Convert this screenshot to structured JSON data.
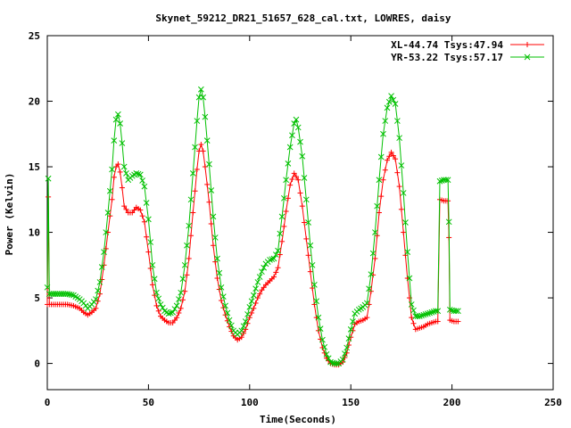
{
  "chart_data": {
    "type": "line",
    "title": "Skynet_59212_DR21_51657_628_cal.txt, LOWRES, daisy",
    "xlabel": "Time(Seconds)",
    "ylabel": "Power (Kelvin)",
    "xlim": [
      0,
      250
    ],
    "ylim": [
      -2,
      25
    ],
    "xticks": [
      0,
      50,
      100,
      150,
      200,
      250
    ],
    "yticks": [
      0,
      5,
      10,
      15,
      20,
      25
    ],
    "grid": false,
    "legend_position": "top-right",
    "series": [
      {
        "name": "XL-44.74 Tsys:47.94",
        "color": "#ff0000",
        "marker": "plus",
        "points": [
          [
            0,
            4.5
          ],
          [
            0.5,
            12.7
          ],
          [
            1,
            4.5
          ],
          [
            5,
            4.5
          ],
          [
            10,
            4.5
          ],
          [
            13,
            4.4
          ],
          [
            16,
            4.2
          ],
          [
            18,
            3.9
          ],
          [
            20,
            3.7
          ],
          [
            22,
            3.9
          ],
          [
            24,
            4.2
          ],
          [
            26,
            5.3
          ],
          [
            28,
            7.5
          ],
          [
            30,
            10.0
          ],
          [
            32,
            12.5
          ],
          [
            33,
            14.2
          ],
          [
            34,
            15.0
          ],
          [
            35,
            15.2
          ],
          [
            36,
            14.6
          ],
          [
            37,
            13.4
          ],
          [
            38,
            12.0
          ],
          [
            40,
            11.5
          ],
          [
            42,
            11.5
          ],
          [
            44,
            11.9
          ],
          [
            46,
            11.7
          ],
          [
            48,
            10.8
          ],
          [
            50,
            8.5
          ],
          [
            52,
            6.0
          ],
          [
            54,
            4.4
          ],
          [
            56,
            3.6
          ],
          [
            58,
            3.3
          ],
          [
            60,
            3.1
          ],
          [
            62,
            3.1
          ],
          [
            64,
            3.5
          ],
          [
            66,
            4.2
          ],
          [
            68,
            5.5
          ],
          [
            70,
            8.0
          ],
          [
            72,
            11.5
          ],
          [
            74,
            14.8
          ],
          [
            75,
            16.2
          ],
          [
            76,
            16.7
          ],
          [
            77,
            16.2
          ],
          [
            78,
            15.0
          ],
          [
            80,
            12.3
          ],
          [
            82,
            9.0
          ],
          [
            84,
            6.5
          ],
          [
            86,
            4.8
          ],
          [
            88,
            3.7
          ],
          [
            90,
            2.8
          ],
          [
            92,
            2.1
          ],
          [
            94,
            1.8
          ],
          [
            96,
            2.0
          ],
          [
            98,
            2.6
          ],
          [
            100,
            3.5
          ],
          [
            102,
            4.2
          ],
          [
            104,
            5.0
          ],
          [
            106,
            5.6
          ],
          [
            108,
            6.0
          ],
          [
            110,
            6.3
          ],
          [
            112,
            6.6
          ],
          [
            114,
            7.3
          ],
          [
            116,
            9.3
          ],
          [
            118,
            11.6
          ],
          [
            120,
            13.6
          ],
          [
            122,
            14.5
          ],
          [
            124,
            14.0
          ],
          [
            126,
            12.0
          ],
          [
            128,
            9.5
          ],
          [
            130,
            7.0
          ],
          [
            132,
            4.5
          ],
          [
            134,
            2.5
          ],
          [
            136,
            1.2
          ],
          [
            138,
            0.4
          ],
          [
            140,
            0.0
          ],
          [
            142,
            -0.1
          ],
          [
            144,
            -0.1
          ],
          [
            146,
            0.1
          ],
          [
            148,
            0.8
          ],
          [
            150,
            2.0
          ],
          [
            152,
            3.0
          ],
          [
            154,
            3.2
          ],
          [
            156,
            3.3
          ],
          [
            158,
            3.5
          ],
          [
            160,
            5.5
          ],
          [
            162,
            8.0
          ],
          [
            164,
            11.5
          ],
          [
            166,
            14.0
          ],
          [
            168,
            15.5
          ],
          [
            170,
            16.1
          ],
          [
            172,
            15.6
          ],
          [
            174,
            13.5
          ],
          [
            176,
            10.0
          ],
          [
            178,
            6.5
          ],
          [
            180,
            3.5
          ],
          [
            182,
            2.6
          ],
          [
            184,
            2.7
          ],
          [
            186,
            2.8
          ],
          [
            188,
            3.0
          ],
          [
            190,
            3.1
          ],
          [
            192,
            3.2
          ],
          [
            193,
            3.2
          ],
          [
            194,
            12.5
          ],
          [
            196,
            12.4
          ],
          [
            198,
            12.4
          ],
          [
            198.5,
            9.6
          ],
          [
            199,
            3.3
          ],
          [
            201,
            3.2
          ],
          [
            203,
            3.2
          ]
        ]
      },
      {
        "name": "YR-53.22 Tsys:57.17",
        "color": "#00c000",
        "marker": "cross",
        "points": [
          [
            0,
            5.8
          ],
          [
            0.5,
            14.1
          ],
          [
            1,
            5.3
          ],
          [
            5,
            5.3
          ],
          [
            10,
            5.3
          ],
          [
            13,
            5.2
          ],
          [
            16,
            4.9
          ],
          [
            18,
            4.6
          ],
          [
            20,
            4.2
          ],
          [
            22,
            4.5
          ],
          [
            24,
            4.9
          ],
          [
            26,
            6.2
          ],
          [
            28,
            8.5
          ],
          [
            30,
            11.5
          ],
          [
            32,
            14.8
          ],
          [
            33,
            17.0
          ],
          [
            34,
            18.6
          ],
          [
            35,
            19.0
          ],
          [
            36,
            18.3
          ],
          [
            37,
            16.8
          ],
          [
            38,
            15.0
          ],
          [
            40,
            14.0
          ],
          [
            42,
            14.3
          ],
          [
            44,
            14.5
          ],
          [
            46,
            14.4
          ],
          [
            48,
            13.5
          ],
          [
            50,
            11.0
          ],
          [
            52,
            7.5
          ],
          [
            54,
            5.4
          ],
          [
            56,
            4.5
          ],
          [
            58,
            4.0
          ],
          [
            60,
            3.8
          ],
          [
            62,
            3.9
          ],
          [
            64,
            4.4
          ],
          [
            66,
            5.4
          ],
          [
            68,
            7.5
          ],
          [
            70,
            10.5
          ],
          [
            72,
            14.5
          ],
          [
            74,
            18.5
          ],
          [
            75,
            20.3
          ],
          [
            76,
            20.9
          ],
          [
            77,
            20.3
          ],
          [
            78,
            18.8
          ],
          [
            80,
            15.2
          ],
          [
            82,
            11.2
          ],
          [
            84,
            8.0
          ],
          [
            86,
            5.8
          ],
          [
            88,
            4.4
          ],
          [
            90,
            3.3
          ],
          [
            92,
            2.5
          ],
          [
            94,
            2.2
          ],
          [
            96,
            2.5
          ],
          [
            98,
            3.2
          ],
          [
            100,
            4.3
          ],
          [
            102,
            5.2
          ],
          [
            104,
            6.2
          ],
          [
            106,
            7.0
          ],
          [
            108,
            7.6
          ],
          [
            110,
            7.9
          ],
          [
            112,
            8.0
          ],
          [
            114,
            8.6
          ],
          [
            116,
            11.2
          ],
          [
            118,
            14.0
          ],
          [
            120,
            16.5
          ],
          [
            122,
            18.3
          ],
          [
            123,
            18.6
          ],
          [
            124,
            18.0
          ],
          [
            126,
            15.8
          ],
          [
            128,
            12.5
          ],
          [
            130,
            9.0
          ],
          [
            132,
            6.0
          ],
          [
            134,
            3.5
          ],
          [
            136,
            1.8
          ],
          [
            138,
            0.7
          ],
          [
            140,
            0.1
          ],
          [
            142,
            0.0
          ],
          [
            144,
            0.0
          ],
          [
            146,
            0.3
          ],
          [
            148,
            1.2
          ],
          [
            150,
            2.6
          ],
          [
            152,
            3.8
          ],
          [
            154,
            4.1
          ],
          [
            156,
            4.3
          ],
          [
            158,
            4.6
          ],
          [
            160,
            6.8
          ],
          [
            162,
            10.0
          ],
          [
            164,
            14.0
          ],
          [
            166,
            17.5
          ],
          [
            168,
            19.5
          ],
          [
            170,
            20.4
          ],
          [
            172,
            19.8
          ],
          [
            174,
            17.2
          ],
          [
            176,
            13.0
          ],
          [
            178,
            8.5
          ],
          [
            180,
            4.5
          ],
          [
            182,
            3.6
          ],
          [
            184,
            3.6
          ],
          [
            186,
            3.7
          ],
          [
            188,
            3.8
          ],
          [
            190,
            3.9
          ],
          [
            192,
            4.0
          ],
          [
            193,
            4.0
          ],
          [
            194,
            13.9
          ],
          [
            196,
            14.0
          ],
          [
            198,
            14.0
          ],
          [
            198.5,
            10.8
          ],
          [
            199,
            4.1
          ],
          [
            201,
            4.0
          ],
          [
            203,
            4.0
          ]
        ]
      }
    ]
  }
}
